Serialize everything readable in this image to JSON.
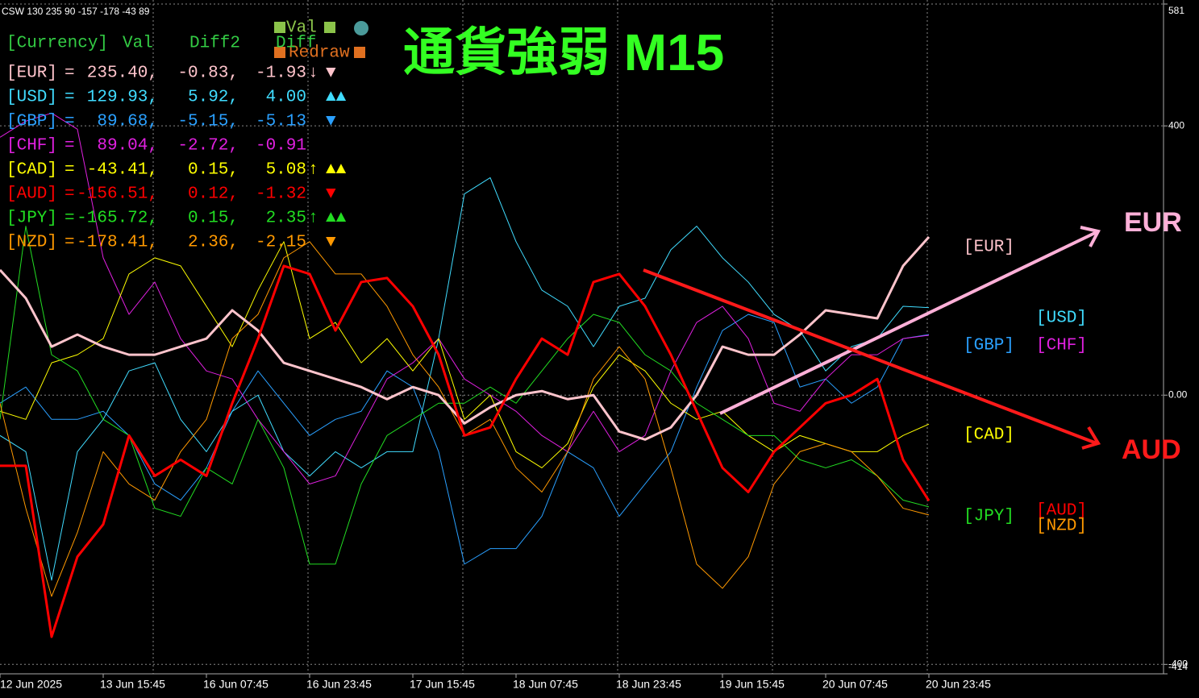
{
  "chart_data": {
    "type": "line",
    "title": "通貨強弱 M15",
    "indicator_label": "CSW 130 235 90 -157 -178 -43 89",
    "buttons": {
      "val": "Val",
      "redraw": "Redraw"
    },
    "categories": [
      "12 Jun 2025",
      null,
      null,
      null,
      "13 Jun 15:45",
      null,
      null,
      null,
      "16 Jun 07:45",
      null,
      null,
      null,
      "16 Jun 23:45",
      null,
      null,
      null,
      "17 Jun 15:45",
      null,
      null,
      null,
      "18 Jun 07:45",
      null,
      null,
      null,
      "18 Jun 23:45",
      null,
      null,
      null,
      "19 Jun 15:45",
      null,
      null,
      null,
      "20 Jun 07:45",
      null,
      null,
      null,
      "20 Jun 23:45"
    ],
    "ylim": [
      -414,
      581
    ],
    "yticks": [
      581,
      400,
      {
        "value": 0,
        "label": "0.00"
      },
      -400,
      -414
    ],
    "grid": true,
    "series": [
      {
        "name": "[EUR]",
        "color": "#ffc4cc",
        "linewidth": 3,
        "values": [
          186,
          144,
          72,
          90,
          72,
          60,
          60,
          72,
          84,
          126,
          96,
          48,
          36,
          24,
          12,
          -6,
          12,
          0,
          -42,
          -18,
          0,
          6,
          -6,
          0,
          -54,
          -66,
          -48,
          0,
          72,
          60,
          60,
          90,
          126,
          120,
          114,
          192,
          235
        ]
      },
      {
        "name": "[USD]",
        "color": "#40dcff",
        "linewidth": 1,
        "values": [
          -60,
          -84,
          -275,
          -84,
          -36,
          36,
          48,
          -36,
          -84,
          -24,
          0,
          -84,
          -120,
          -84,
          -108,
          -84,
          -84,
          84,
          299,
          323,
          228,
          156,
          132,
          72,
          132,
          144,
          216,
          251,
          204,
          168,
          120,
          96,
          36,
          72,
          84,
          132,
          130
        ]
      },
      {
        "name": "[GBP]",
        "color": "#2aa0ff",
        "linewidth": 1,
        "values": [
          -12,
          12,
          -36,
          -36,
          -24,
          -60,
          -132,
          -156,
          -108,
          -24,
          36,
          -12,
          -60,
          -36,
          -24,
          36,
          12,
          -84,
          -251,
          -228,
          -228,
          -180,
          -84,
          -108,
          -180,
          -132,
          -84,
          12,
          96,
          120,
          108,
          12,
          24,
          -12,
          12,
          84,
          90
        ]
      },
      {
        "name": "[CHF]",
        "color": "#e020e0",
        "linewidth": 1,
        "values": [
          383,
          407,
          419,
          395,
          204,
          120,
          168,
          84,
          36,
          24,
          -36,
          -84,
          -132,
          -120,
          -48,
          24,
          48,
          84,
          24,
          0,
          -24,
          -60,
          -84,
          -24,
          -84,
          -60,
          36,
          108,
          132,
          84,
          -12,
          -24,
          24,
          60,
          60,
          84,
          89
        ]
      },
      {
        "name": "[CAD]",
        "color": "#ffff00",
        "linewidth": 1,
        "values": [
          -24,
          -36,
          48,
          60,
          84,
          180,
          204,
          192,
          132,
          72,
          156,
          228,
          84,
          108,
          48,
          84,
          36,
          84,
          -36,
          0,
          -84,
          -108,
          -72,
          12,
          60,
          36,
          -12,
          -36,
          -24,
          -60,
          -84,
          -60,
          -72,
          -84,
          -84,
          -60,
          -43
        ]
      },
      {
        "name": "[AUD]",
        "color": "#ff0000",
        "linewidth": 3,
        "values": [
          -105,
          -105,
          -359,
          -240,
          -192,
          -60,
          -120,
          -96,
          -120,
          -12,
          84,
          192,
          180,
          96,
          168,
          174,
          132,
          60,
          -60,
          -48,
          24,
          84,
          60,
          168,
          180,
          132,
          60,
          -24,
          -108,
          -144,
          -84,
          -48,
          -12,
          0,
          24,
          -96,
          -157
        ]
      },
      {
        "name": "[JPY]",
        "color": "#22dd22",
        "linewidth": 1,
        "values": [
          -36,
          251,
          60,
          36,
          -36,
          -60,
          -168,
          -180,
          -108,
          -132,
          -36,
          -108,
          -251,
          -251,
          -132,
          -60,
          -36,
          -12,
          -12,
          12,
          -12,
          36,
          84,
          120,
          108,
          60,
          36,
          -12,
          -36,
          -60,
          -60,
          -96,
          -108,
          -96,
          -120,
          -156,
          -166
        ]
      },
      {
        "name": "[NZD]",
        "color": "#ff9900",
        "linewidth": 1,
        "values": [
          -12,
          -168,
          -299,
          -204,
          -84,
          -132,
          -156,
          -84,
          -36,
          84,
          120,
          204,
          228,
          180,
          180,
          132,
          60,
          12,
          -60,
          -36,
          -108,
          -144,
          -84,
          24,
          72,
          24,
          -108,
          -251,
          -287,
          -240,
          -132,
          -84,
          -72,
          -84,
          -120,
          -168,
          -178
        ]
      }
    ],
    "info_table": {
      "header": {
        "currency": "[Currency]",
        "val": "Val",
        "diff2": "Diff2",
        "diff": "Diff"
      },
      "equals": "=",
      "rows": [
        {
          "val": "235.40,",
          "diff2": "-0.83,",
          "diff": "-1.93",
          "trend": "↓",
          "signal": "▼"
        },
        {
          "val": "129.93,",
          "diff2": "5.92,",
          "diff": "4.00",
          "signal": "▲▲"
        },
        {
          "val": "89.68,",
          "diff2": "-5.15,",
          "diff": "-5.13",
          "signal": "▼"
        },
        {
          "val": "89.04,",
          "diff2": "-2.72,",
          "diff": "-0.91"
        },
        {
          "val": "-43.41,",
          "diff2": "0.15,",
          "diff": "5.08",
          "trend": "↑",
          "signal": "▲▲"
        },
        {
          "val": "-156.51,",
          "diff2": "0.12,",
          "diff": "-1.32",
          "signal": "▼"
        },
        {
          "val": "-165.72,",
          "diff2": "0.15,",
          "diff": "2.35",
          "trend": "↑",
          "signal": "▲▲"
        },
        {
          "val": "-178.41,",
          "diff2": "2.36,",
          "diff": "-2.15",
          "signal": "▼"
        }
      ]
    },
    "annotations": [
      {
        "text": "EUR",
        "color": "#ffb0d8"
      },
      {
        "text": "AUD",
        "color": "#ff1a1a"
      }
    ]
  }
}
